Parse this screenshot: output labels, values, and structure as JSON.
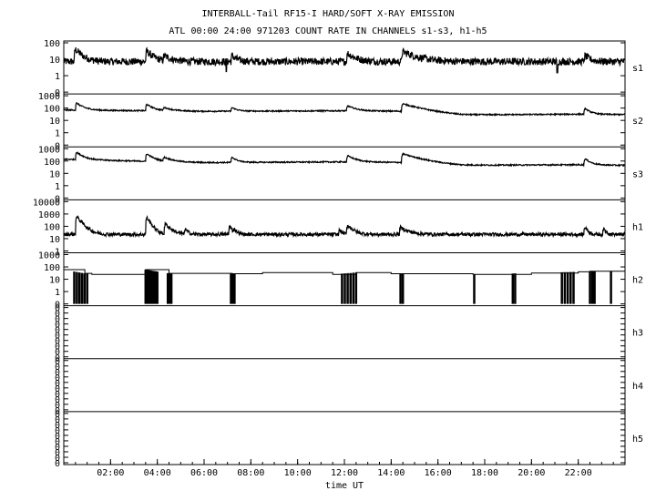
{
  "header": {
    "title": "INTERBALL-Tail RF15-I HARD/SOFT X-RAY EMISSION",
    "subtitle": "ATL 00:00 24:00 971203  COUNT RATE IN CHANNELS s1-s3, h1-h5"
  },
  "chart_data": {
    "type": "line",
    "title": "INTERBALL-Tail RF15-I HARD/SOFT X-RAY EMISSION",
    "subtitle": "ATL 00:00 24:00 971203  COUNT RATE IN CHANNELS s1-s3, h1-h5",
    "xlabel": "time UT",
    "xlim": [
      0,
      24
    ],
    "x_ticks": [
      "02:00",
      "04:00",
      "06:00",
      "08:00",
      "10:00",
      "12:00",
      "14:00",
      "16:00",
      "18:00",
      "20:00",
      "22:00"
    ],
    "y_scale": "log",
    "grid": false,
    "line_color": "#000000",
    "panels": [
      {
        "name": "s1",
        "y_ticks": [
          "100",
          "10",
          "1",
          "0"
        ],
        "baseline": 7.2,
        "base_trend": [
          [
            0,
            7.2
          ],
          [
            24,
            7.2
          ]
        ],
        "noise": 0.22,
        "peaks": [
          [
            0.5,
            40,
            0.25
          ],
          [
            3.55,
            30,
            0.25
          ],
          [
            4.3,
            16,
            0.3
          ],
          [
            7.2,
            16,
            0.2
          ],
          [
            12.15,
            22,
            0.3
          ],
          [
            14.5,
            28,
            0.55
          ],
          [
            22.3,
            16,
            0.2
          ]
        ],
        "dips": [
          [
            6.95,
            1.8
          ],
          [
            21.1,
            1.5
          ]
        ]
      },
      {
        "name": "s2",
        "y_ticks": [
          "1000",
          "100",
          "10",
          "1",
          "0"
        ],
        "baseline": 55,
        "base_trend": [
          [
            0,
            70
          ],
          [
            6,
            55
          ],
          [
            12,
            60
          ],
          [
            15,
            55
          ],
          [
            17,
            28
          ],
          [
            22,
            32
          ],
          [
            24,
            30
          ]
        ],
        "noise": 0.05,
        "peaks": [
          [
            0.55,
            250,
            0.25
          ],
          [
            3.55,
            200,
            0.25
          ],
          [
            4.3,
            110,
            0.3
          ],
          [
            7.2,
            110,
            0.2
          ],
          [
            12.15,
            150,
            0.3
          ],
          [
            14.5,
            220,
            0.6
          ],
          [
            22.3,
            90,
            0.2
          ]
        ],
        "dips": []
      },
      {
        "name": "s3",
        "y_ticks": [
          "1000",
          "100",
          "10",
          "1",
          "0"
        ],
        "baseline": 90,
        "base_trend": [
          [
            0,
            140
          ],
          [
            3,
            100
          ],
          [
            6,
            75
          ],
          [
            12,
            85
          ],
          [
            15,
            75
          ],
          [
            17,
            45
          ],
          [
            22,
            50
          ],
          [
            24,
            45
          ]
        ],
        "noise": 0.05,
        "peaks": [
          [
            0.55,
            500,
            0.25
          ],
          [
            3.55,
            380,
            0.25
          ],
          [
            4.3,
            200,
            0.3
          ],
          [
            7.2,
            200,
            0.2
          ],
          [
            12.15,
            260,
            0.3
          ],
          [
            14.5,
            380,
            0.6
          ],
          [
            22.3,
            150,
            0.2
          ]
        ],
        "dips": []
      },
      {
        "name": "h1",
        "y_ticks": [
          "10000",
          "1000",
          "100",
          "10",
          "1"
        ],
        "baseline": 22,
        "base_trend": [
          [
            0,
            22
          ],
          [
            24,
            22
          ]
        ],
        "noise": 0.14,
        "peaks": [
          [
            0.55,
            600,
            0.2
          ],
          [
            3.55,
            500,
            0.15
          ],
          [
            4.35,
            150,
            0.2
          ],
          [
            5.2,
            60,
            0.1
          ],
          [
            7.1,
            100,
            0.1
          ],
          [
            7.3,
            60,
            0.1
          ],
          [
            11.8,
            50,
            0.1
          ],
          [
            12.15,
            120,
            0.2
          ],
          [
            14.4,
            80,
            0.3
          ],
          [
            22.3,
            90,
            0.1
          ],
          [
            23.1,
            60,
            0.1
          ]
        ],
        "dips": []
      },
      {
        "name": "h2",
        "y_ticks": [
          "1000",
          "100",
          "10",
          "1",
          "0"
        ],
        "step_levels": [
          [
            0,
            60
          ],
          [
            0.9,
            30
          ],
          [
            1.2,
            25
          ],
          [
            3.5,
            60
          ],
          [
            4.5,
            30
          ],
          [
            7.2,
            28
          ],
          [
            8.5,
            35
          ],
          [
            11.5,
            25
          ],
          [
            12.5,
            35
          ],
          [
            14.0,
            28
          ],
          [
            17.5,
            25
          ],
          [
            20.0,
            32
          ],
          [
            22.0,
            40
          ],
          [
            22.5,
            45
          ],
          [
            24,
            45
          ]
        ],
        "drop_bursts": [
          [
            0.45,
            1.0,
            6
          ],
          [
            3.5,
            4.0,
            8
          ],
          [
            4.45,
            4.6,
            3
          ],
          [
            7.15,
            7.3,
            3
          ],
          [
            11.9,
            12.5,
            6
          ],
          [
            14.4,
            14.5,
            2
          ],
          [
            17.55,
            17.56,
            1
          ],
          [
            19.2,
            19.3,
            2
          ],
          [
            21.3,
            21.8,
            5
          ],
          [
            22.5,
            22.7,
            3
          ],
          [
            23.4,
            23.5,
            1
          ]
        ]
      },
      {
        "name": "h3",
        "y_ticks": [
          "0",
          "0",
          "0",
          "0",
          "0",
          "0",
          "0",
          "0",
          "0",
          "0"
        ]
      },
      {
        "name": "h4",
        "y_ticks": [
          "0",
          "0",
          "0",
          "0",
          "0",
          "0",
          "0",
          "0",
          "0",
          "0"
        ]
      },
      {
        "name": "h5",
        "y_ticks": [
          "0",
          "0",
          "0",
          "0",
          "0",
          "0",
          "0",
          "0",
          "0",
          "0"
        ]
      }
    ]
  }
}
